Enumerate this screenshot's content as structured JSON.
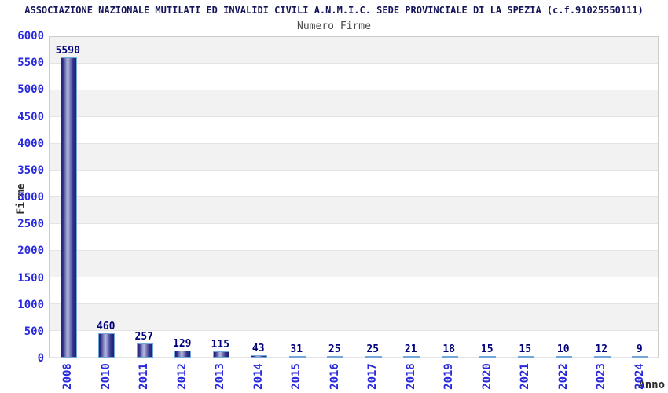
{
  "chart_data": {
    "type": "bar",
    "title": "ASSOCIAZIONE NAZIONALE MUTILATI ED INVALIDI CIVILI A.N.M.I.C. SEDE PROVINCIALE DI LA SPEZIA (c.f.91025550111)",
    "subtitle": "Numero Firme",
    "categories": [
      "2008",
      "2010",
      "2011",
      "2012",
      "2013",
      "2014",
      "2015",
      "2016",
      "2017",
      "2018",
      "2019",
      "2020",
      "2021",
      "2022",
      "2023",
      "2024"
    ],
    "values": [
      5590,
      460,
      257,
      129,
      115,
      43,
      31,
      25,
      25,
      21,
      18,
      15,
      15,
      10,
      12,
      9
    ],
    "xlabel": "Anno",
    "ylabel": "Firme",
    "ylim": [
      0,
      6000
    ],
    "ytick_step": 500,
    "legend": "none",
    "grid": "alternating-horizontal-bands",
    "colors": {
      "title": "#14145a",
      "subtitle": "#4b4b4b",
      "tick_labels": "#2929dd",
      "value_labels": "#00007d",
      "axis_titles": "#2b2b2b",
      "bar_border": "#72a9da",
      "bar_edge_dark": "#1f1f78",
      "bar_mid_dark": "#33338a",
      "bar_highlight": "#aeb2da",
      "band_gray": "#f2f2f2",
      "band_white": "#ffffff",
      "plot_border": "#cccccc"
    }
  }
}
